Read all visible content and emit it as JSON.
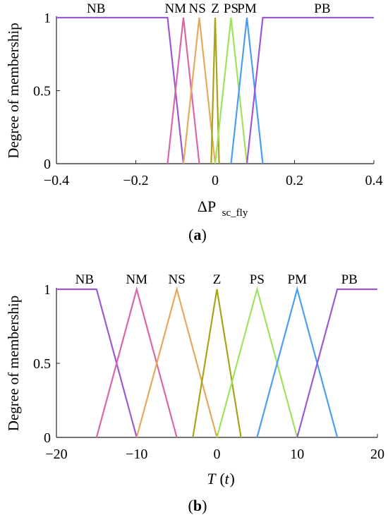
{
  "chart_data": [
    {
      "type": "line",
      "panel_label": "a",
      "xlabel": "ΔP",
      "xlabel_sub": "sc_fly",
      "ylabel": "Degree of membership",
      "xlim": [
        -0.4,
        0.4
      ],
      "ylim": [
        0,
        1
      ],
      "x_ticks": [
        -0.4,
        -0.2,
        0,
        0.2,
        0.4
      ],
      "x_tick_labels": [
        "−0.4",
        "−0.2",
        "0",
        "0.2",
        "0.4"
      ],
      "y_ticks": [
        0,
        0.5,
        1
      ],
      "y_tick_labels": [
        "0",
        "0.5",
        "1"
      ],
      "grid": false,
      "series": [
        {
          "name": "NB",
          "color": "#9b59d6",
          "x": [
            -0.4,
            -0.12,
            -0.08
          ],
          "y": [
            1,
            1,
            0
          ]
        },
        {
          "name": "NM",
          "color": "#d966a6",
          "x": [
            -0.12,
            -0.08,
            -0.04
          ],
          "y": [
            0,
            1,
            0
          ]
        },
        {
          "name": "NS",
          "color": "#e8a85c",
          "x": [
            -0.08,
            -0.04,
            0
          ],
          "y": [
            0,
            1,
            0
          ]
        },
        {
          "name": "Z",
          "color": "#a8a51a",
          "x": [
            -0.01,
            0,
            0.01
          ],
          "y": [
            0,
            1,
            0
          ]
        },
        {
          "name": "PS",
          "color": "#9ee35c",
          "x": [
            0,
            0.04,
            0.08
          ],
          "y": [
            0,
            1,
            0
          ]
        },
        {
          "name": "PM",
          "color": "#4a9ff0",
          "x": [
            0.04,
            0.08,
            0.12
          ],
          "y": [
            0,
            1,
            0
          ]
        },
        {
          "name": "PB",
          "color": "#9b59d6",
          "x": [
            0.08,
            0.12,
            0.4
          ],
          "y": [
            0,
            1,
            1
          ]
        }
      ],
      "labels": [
        {
          "text": "NB",
          "x": -0.3
        },
        {
          "text": "NM",
          "x": -0.1
        },
        {
          "text": "NS",
          "x": -0.045
        },
        {
          "text": "Z",
          "x": 0
        },
        {
          "text": "PS",
          "x": 0.04
        },
        {
          "text": "PM",
          "x": 0.08
        },
        {
          "text": "PB",
          "x": 0.27
        }
      ]
    },
    {
      "type": "line",
      "panel_label": "b",
      "xlabel": "T",
      "xlabel_paren": "t",
      "ylabel": "Degree of membership",
      "xlim": [
        -20,
        20
      ],
      "ylim": [
        0,
        1
      ],
      "x_ticks": [
        -20,
        -10,
        0,
        10,
        20
      ],
      "x_tick_labels": [
        "−20",
        "−10",
        "0",
        "10",
        "20"
      ],
      "y_ticks": [
        0,
        0.5,
        1
      ],
      "y_tick_labels": [
        "0",
        "0.5",
        "1"
      ],
      "grid": false,
      "series": [
        {
          "name": "NB",
          "color": "#9b59d6",
          "x": [
            -20,
            -15,
            -10
          ],
          "y": [
            1,
            1,
            0
          ]
        },
        {
          "name": "NM",
          "color": "#d966a6",
          "x": [
            -15,
            -10,
            -5
          ],
          "y": [
            0,
            1,
            0
          ]
        },
        {
          "name": "NS",
          "color": "#e8a85c",
          "x": [
            -10,
            -5,
            0
          ],
          "y": [
            0,
            1,
            0
          ]
        },
        {
          "name": "Z",
          "color": "#a8a51a",
          "x": [
            -3,
            0,
            3
          ],
          "y": [
            0,
            1,
            0
          ]
        },
        {
          "name": "PS",
          "color": "#9ee35c",
          "x": [
            0,
            5,
            10
          ],
          "y": [
            0,
            1,
            0
          ]
        },
        {
          "name": "PM",
          "color": "#4a9ff0",
          "x": [
            5,
            10,
            15
          ],
          "y": [
            0,
            1,
            0
          ]
        },
        {
          "name": "PB",
          "color": "#9b59d6",
          "x": [
            10,
            15,
            20
          ],
          "y": [
            0,
            1,
            1
          ]
        }
      ],
      "labels": [
        {
          "text": "NB",
          "x": -16.5
        },
        {
          "text": "NM",
          "x": -10
        },
        {
          "text": "NS",
          "x": -5
        },
        {
          "text": "Z",
          "x": 0
        },
        {
          "text": "PS",
          "x": 5
        },
        {
          "text": "PM",
          "x": 10
        },
        {
          "text": "PB",
          "x": 16.5
        }
      ]
    }
  ]
}
